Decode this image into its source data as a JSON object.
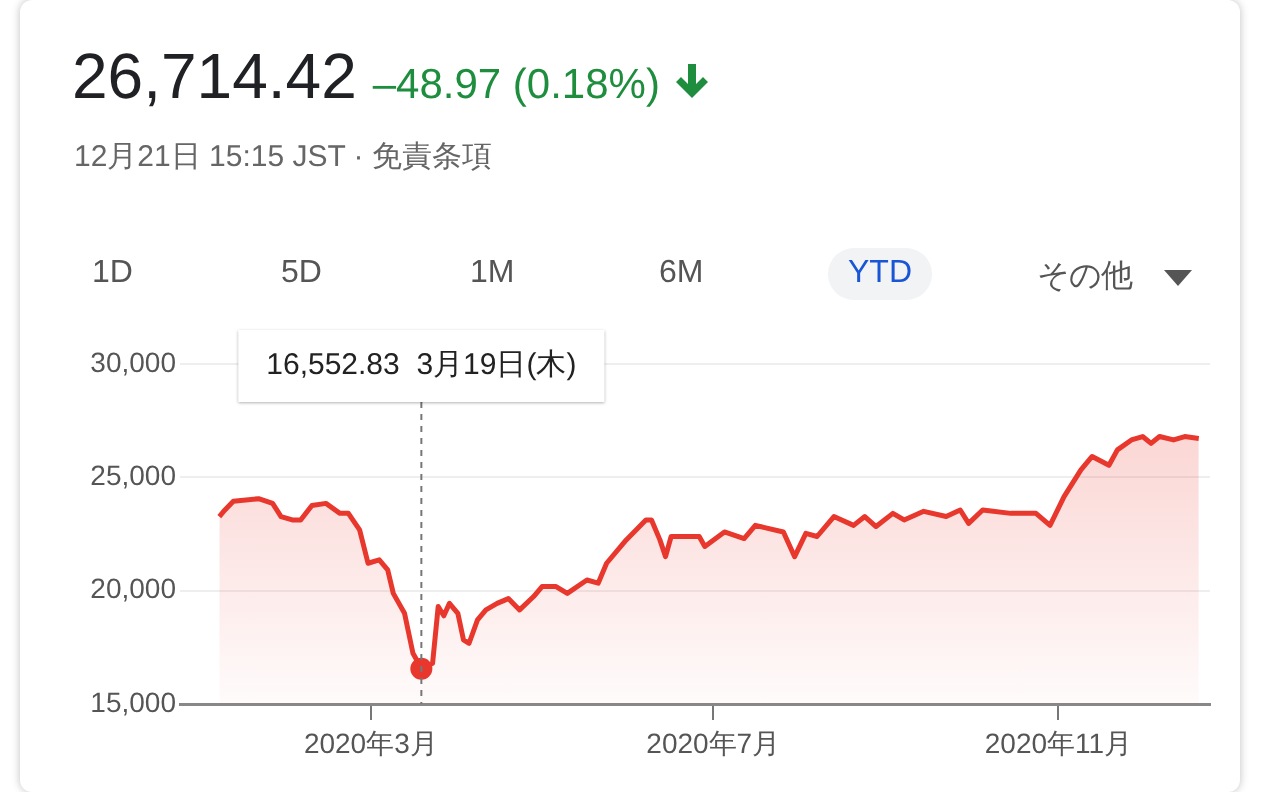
{
  "chart_data": {
    "type": "area",
    "title": "26,714.42",
    "subtitle": "–48.97 (0.18%)",
    "annotations": [
      "12月21日 15:15 JST · 免責条項",
      "1D",
      "5D",
      "1M",
      "6M",
      "YTD",
      "その他"
    ],
    "ref_lines": [
      {
        "axis": "x",
        "value": "2020-03-19",
        "label": "16,552.83  3月19日(木)",
        "color": "#777777",
        "line_style": "dashed"
      }
    ],
    "x": [
      "2020-01-07",
      "2020-01-09",
      "2020-01-12",
      "2020-01-21",
      "2020-01-26",
      "2020-01-29",
      "2020-02-02",
      "2020-02-05",
      "2020-02-09",
      "2020-02-14",
      "2020-02-19",
      "2020-02-22",
      "2020-02-26",
      "2020-02-29",
      "2020-03-04",
      "2020-03-07",
      "2020-03-09",
      "2020-03-13",
      "2020-03-16",
      "2020-03-18",
      "2020-03-19",
      "2020-03-23",
      "2020-03-25",
      "2020-03-27",
      "2020-03-29",
      "2020-04-01",
      "2020-04-03",
      "2020-04-05",
      "2020-04-08",
      "2020-04-11",
      "2020-04-15",
      "2020-04-19",
      "2020-04-23",
      "2020-04-28",
      "2020-05-01",
      "2020-05-06",
      "2020-05-10",
      "2020-05-17",
      "2020-05-21",
      "2020-05-24",
      "2020-05-31",
      "2020-06-07",
      "2020-06-09",
      "2020-06-12",
      "2020-06-14",
      "2020-06-16",
      "2020-06-26",
      "2020-06-28",
      "2020-07-05",
      "2020-07-12",
      "2020-07-16",
      "2020-07-26",
      "2020-07-30",
      "2020-08-03",
      "2020-08-07",
      "2020-08-13",
      "2020-08-20",
      "2020-08-24",
      "2020-08-28",
      "2020-09-03",
      "2020-09-07",
      "2020-09-14",
      "2020-09-22",
      "2020-09-27",
      "2020-09-30",
      "2020-10-05",
      "2020-10-15",
      "2020-10-24",
      "2020-10-29",
      "2020-11-03",
      "2020-11-09",
      "2020-11-13",
      "2020-11-19",
      "2020-11-22",
      "2020-11-27",
      "2020-12-01",
      "2020-12-04",
      "2020-12-07",
      "2020-12-12",
      "2020-12-16",
      "2020-12-21"
    ],
    "series": [
      {
        "color": "#e8372c",
        "values": [
          23270,
          23560,
          23940,
          24060,
          23850,
          23270,
          23120,
          23120,
          23760,
          23850,
          23410,
          23410,
          22680,
          21210,
          21360,
          20920,
          19880,
          19000,
          17240,
          16800,
          16552.83,
          16800,
          19300,
          18890,
          19440,
          19000,
          17830,
          17680,
          18710,
          19150,
          19440,
          19650,
          19150,
          19740,
          20180,
          20180,
          19880,
          20470,
          20330,
          21210,
          22240,
          23120,
          23120,
          22240,
          21500,
          22390,
          22390,
          21950,
          22590,
          22300,
          22880,
          22590,
          21500,
          22530,
          22390,
          23270,
          22880,
          23270,
          22830,
          23410,
          23120,
          23500,
          23270,
          23560,
          22970,
          23560,
          23410,
          23410,
          22880,
          24150,
          25330,
          25920,
          25530,
          26210,
          26650,
          26800,
          26500,
          26800,
          26650,
          26800,
          26714.42
        ]
      }
    ],
    "xlim": [
      "2019-12-24",
      "2020-12-25"
    ],
    "xticks": [
      {
        "value": "2020-03",
        "label": "2020年3月"
      },
      {
        "value": "2020-07",
        "label": "2020年7月"
      },
      {
        "value": "2020-11",
        "label": "2020年11月"
      }
    ],
    "ylim": [
      15000,
      30000
    ],
    "yticks": [
      {
        "value": 15000,
        "label": "15,000"
      },
      {
        "value": 20000,
        "label": "20,000"
      },
      {
        "value": 25000,
        "label": "25,000"
      },
      {
        "value": 30000,
        "label": "30,000"
      }
    ],
    "grid": "y"
  }
}
